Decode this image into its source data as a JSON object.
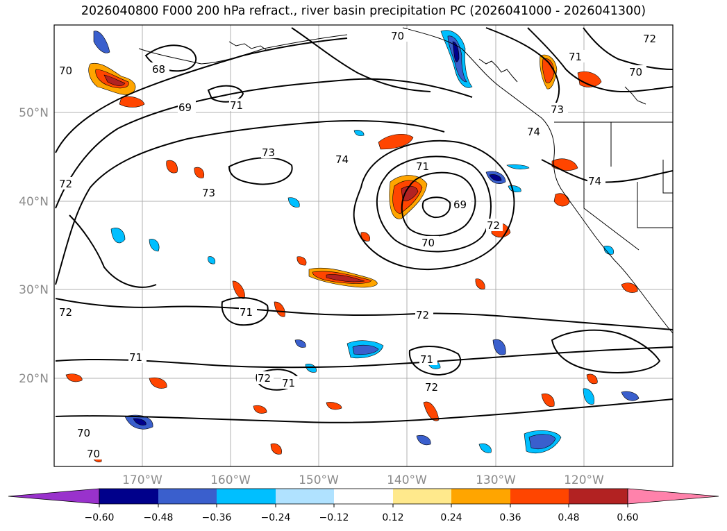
{
  "title": "2026040800 F000 200 hPa refract., river basin precipitation PC (2026041000 - 2026041300)",
  "latitude_labels": [
    "50°N",
    "40°N",
    "30°N",
    "20°N"
  ],
  "longitude_labels": [
    "170°W",
    "160°W",
    "150°W",
    "140°W",
    "130°W",
    "120°W"
  ],
  "contour_labels": [
    "68",
    "69",
    "70",
    "70",
    "70",
    "70",
    "70",
    "70",
    "71",
    "71",
    "71",
    "71",
    "71",
    "71",
    "72",
    "72",
    "72",
    "72",
    "72",
    "72",
    "73",
    "73",
    "73",
    "74",
    "74",
    "74",
    "69",
    "71",
    "72"
  ],
  "colorbar": {
    "ticks": [
      "−0.60",
      "−0.48",
      "−0.36",
      "−0.24",
      "−0.12",
      "0.12",
      "0.24",
      "0.36",
      "0.48",
      "0.60"
    ],
    "bin_colors": [
      "#9932CC",
      "#00008B",
      "#3A5FCD",
      "#00BFFF",
      "#B0E2FF",
      "#FFFFFF",
      "#FFE98C",
      "#FFA500",
      "#FF4500",
      "#B22222",
      "#FF82AB"
    ]
  }
}
